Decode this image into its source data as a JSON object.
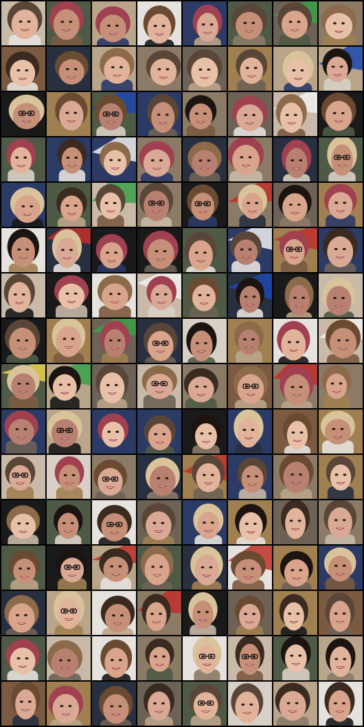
{
  "image": {
    "description_grid": {
      "columns": 8,
      "rows": 16
    },
    "palettes": {
      "bg": [
        "#8a7a66",
        "#b9a58a",
        "#1a1a1a",
        "#6d6256",
        "#d8d0c6",
        "#2c3a66",
        "#a08050",
        "#c8b9a8",
        "#4f5a46",
        "#e6e2de",
        "#7a5a40",
        "#283040"
      ],
      "skin": [
        "#d8a48c",
        "#e0b39a",
        "#c58f78",
        "#e8c0a8",
        "#b88070",
        "#d9a995"
      ],
      "hair": [
        "#3a2a20",
        "#6b4a32",
        "#1c1410",
        "#8c6a4a",
        "#5a4638",
        "#a04050",
        "#d9c39a"
      ],
      "accents": [
        "#e8d24a",
        "#3aa048",
        "#c0302a",
        "#1b48b0",
        "#f0f0f0"
      ]
    }
  }
}
